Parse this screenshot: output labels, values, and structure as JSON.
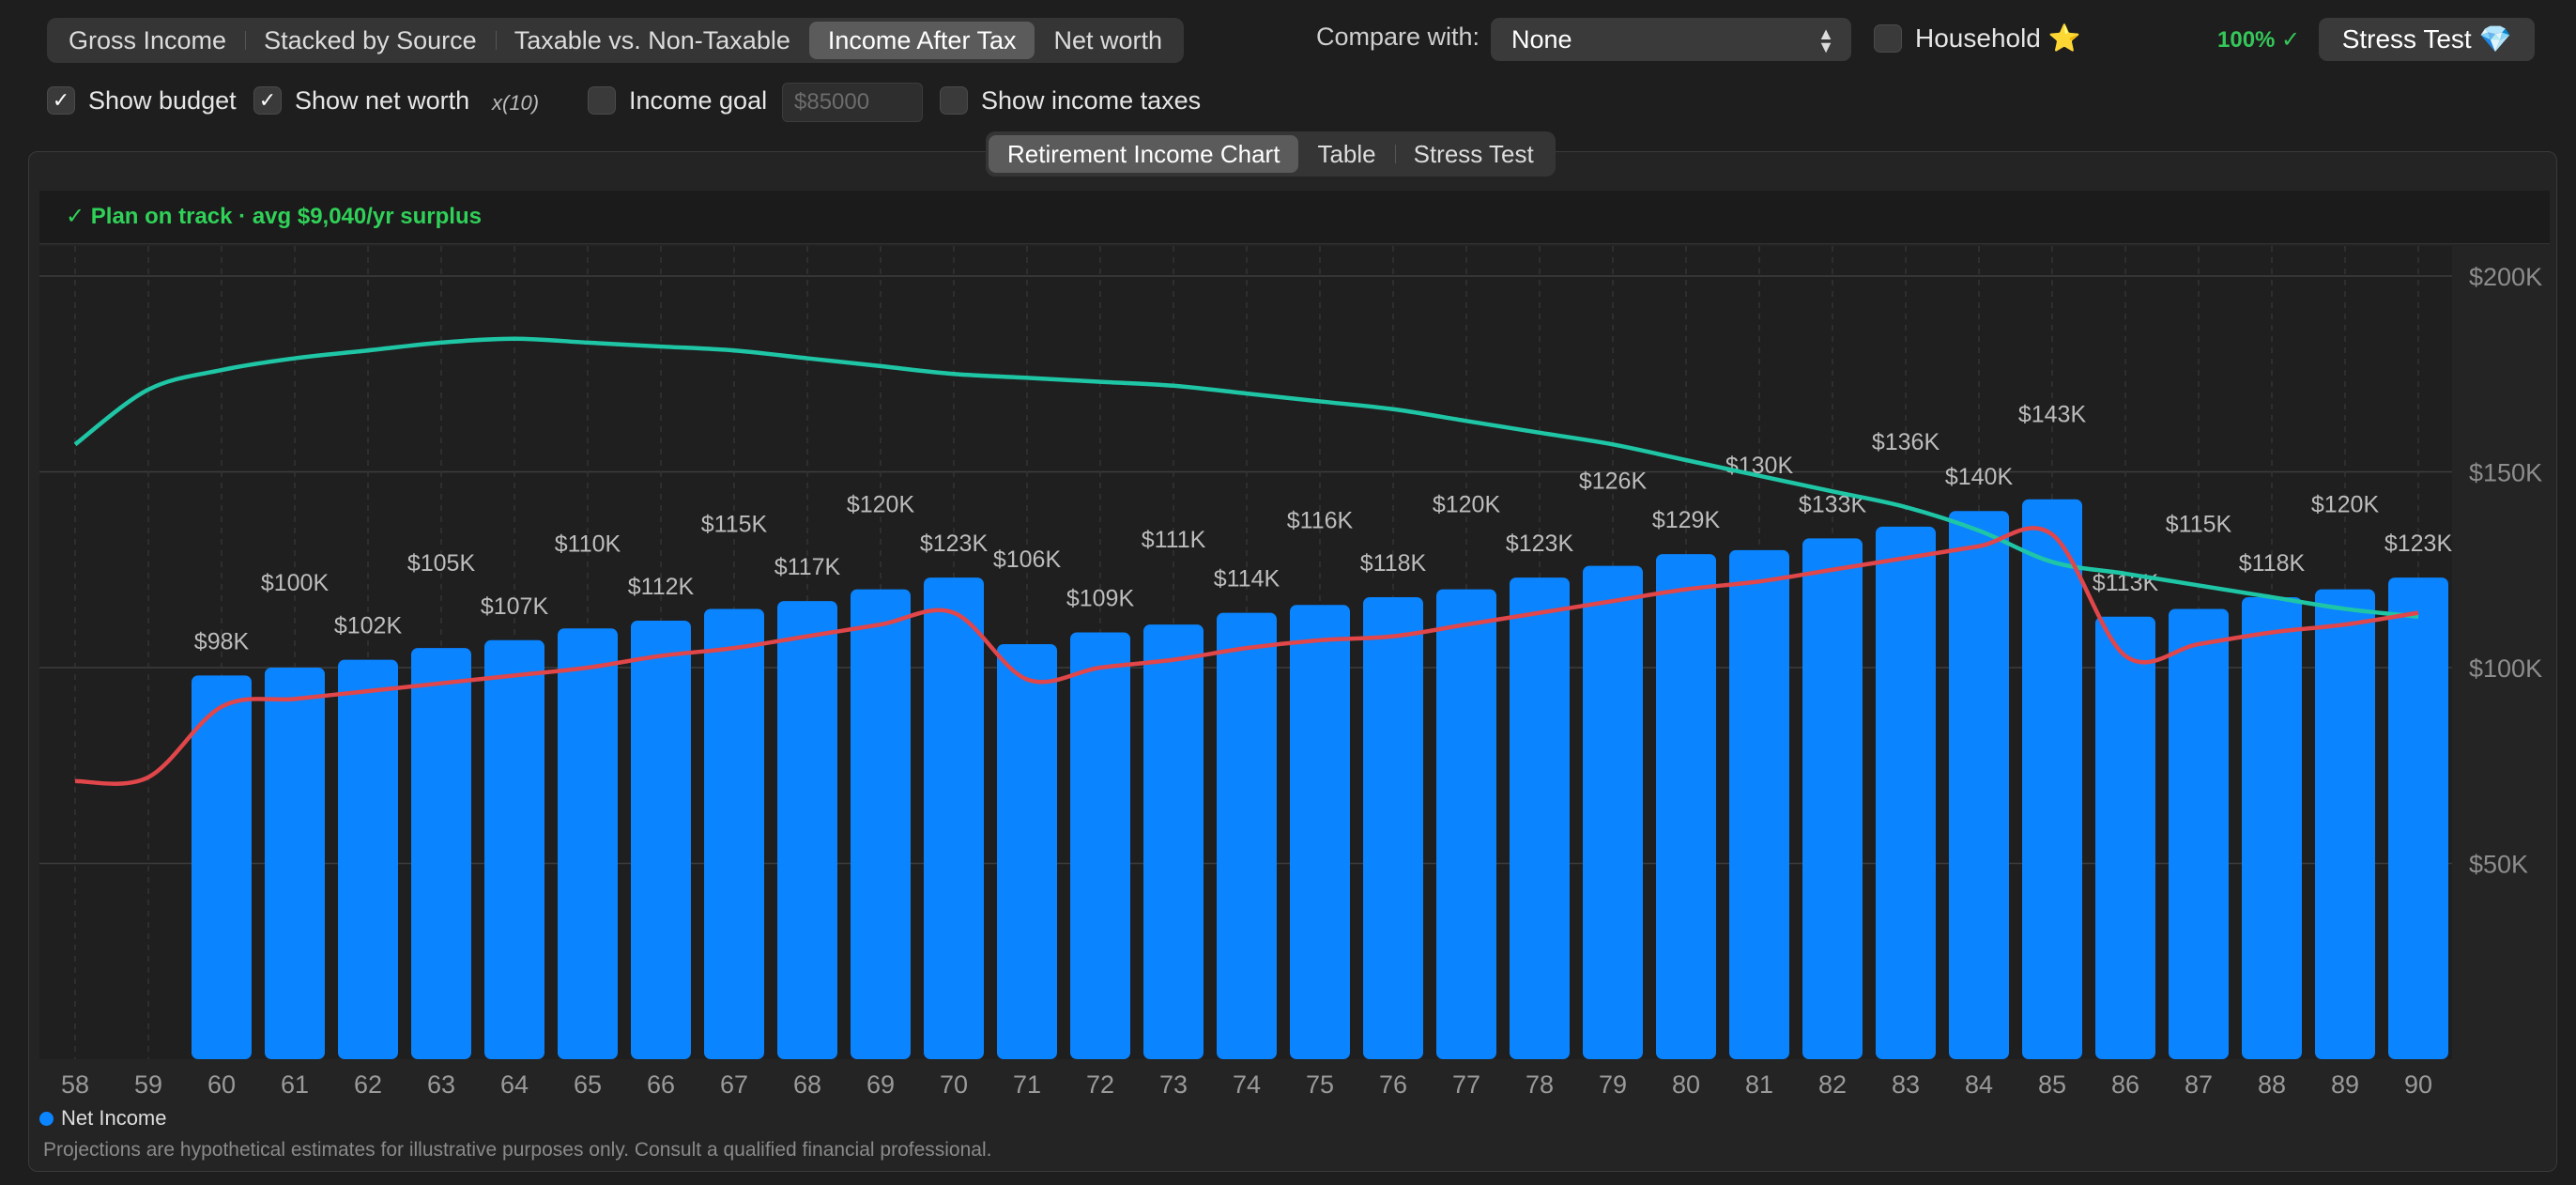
{
  "view_tabs": [
    "Gross Income",
    "Stacked by Source",
    "Taxable vs. Non-Taxable",
    "Income After Tax",
    "Net worth"
  ],
  "active_view_tab": "Income After Tax",
  "compare": {
    "label": "Compare with:",
    "value": "None"
  },
  "household": {
    "label": "Household",
    "star": "⭐",
    "checked": false
  },
  "stress_test": {
    "percent": "100% ✓",
    "label": "Stress Test 💎"
  },
  "options": {
    "show_budget": {
      "label": "Show budget",
      "checked": true
    },
    "show_net_worth": {
      "label": "Show net worth",
      "checked": true,
      "scale_note": "x(10)"
    },
    "income_goal": {
      "label": "Income goal",
      "checked": false,
      "placeholder": "$85000"
    },
    "show_income_taxes": {
      "label": "Show income taxes",
      "checked": false
    }
  },
  "chart_tabs": [
    "Retirement Income Chart",
    "Table",
    "Stress Test"
  ],
  "active_chart_tab": "Retirement Income Chart",
  "status": "✓  Plan on track  ·  avg $9,040/yr surplus",
  "legend": {
    "label": "Net Income",
    "color": "#0a84ff"
  },
  "footnote": "Projections are hypothetical estimates for illustrative purposes only. Consult a qualified financial professional.",
  "colors": {
    "bar": "#0a84ff",
    "budget": "#e0464a",
    "net_worth": "#1fc6a6",
    "status": "#30d158",
    "background": "#1e1e1e"
  },
  "chart_data": {
    "type": "bar",
    "categories": [
      "58",
      "59",
      "60",
      "61",
      "62",
      "63",
      "64",
      "65",
      "66",
      "67",
      "68",
      "69",
      "70",
      "71",
      "72",
      "73",
      "74",
      "75",
      "76",
      "77",
      "78",
      "79",
      "80",
      "81",
      "82",
      "83",
      "84",
      "85",
      "86",
      "87",
      "88",
      "89",
      "90"
    ],
    "series": [
      {
        "name": "Net Income",
        "type": "bar",
        "values": [
          null,
          null,
          98,
          100,
          102,
          105,
          107,
          110,
          112,
          115,
          117,
          120,
          123,
          106,
          109,
          111,
          114,
          116,
          118,
          120,
          123,
          126,
          129,
          130,
          133,
          136,
          140,
          143,
          113,
          115,
          118,
          120,
          123
        ],
        "labels": [
          "",
          "",
          "$98K",
          "$100K",
          "$102K",
          "$105K",
          "$107K",
          "$110K",
          "$112K",
          "$115K",
          "$117K",
          "$120K",
          "$123K",
          "$106K",
          "$109K",
          "$111K",
          "$114K",
          "$116K",
          "$118K",
          "$120K",
          "$123K",
          "$126K",
          "$129K",
          "$130K",
          "$133K",
          "$136K",
          "$140K",
          "$143K",
          "$113K",
          "$115K",
          "$118K",
          "$120K",
          "$123K"
        ]
      },
      {
        "type": "line",
        "role": "budget",
        "values": [
          71,
          72,
          90,
          92,
          94,
          96,
          98,
          100,
          103,
          105,
          108,
          111,
          114,
          97,
          100,
          102,
          105,
          107,
          108,
          111,
          114,
          117,
          120,
          122,
          125,
          128,
          131,
          134,
          103,
          106,
          109,
          111,
          114
        ]
      },
      {
        "type": "line",
        "role": "net_worth_x10",
        "values": [
          157,
          171,
          176,
          179,
          181,
          183,
          184,
          183,
          182,
          181,
          179,
          177,
          175,
          174,
          173,
          172,
          170,
          168,
          166,
          163,
          160,
          157,
          153,
          149,
          145,
          141,
          135,
          127,
          124,
          121,
          118,
          115,
          113
        ]
      }
    ],
    "yticks": [
      "$200K",
      "$150K",
      "$100K",
      "$50K"
    ],
    "ylim": [
      0,
      200
    ],
    "grid": true
  }
}
